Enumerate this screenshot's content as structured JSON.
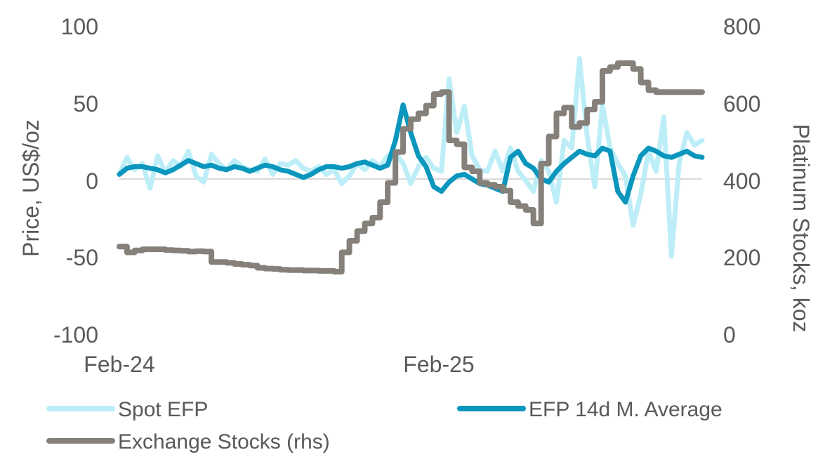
{
  "chart_data": {
    "type": "line",
    "ylabel": "Price, US$/oz",
    "y2label": "Platinum Stocks, koz",
    "ylim": [
      -100,
      100
    ],
    "y2lim": [
      0,
      800
    ],
    "y_ticks": [
      "100",
      "50",
      "0",
      "-50",
      "-100"
    ],
    "y2_ticks": [
      "800",
      "600",
      "400",
      "200",
      "0"
    ],
    "x_tick_labels": [
      "Feb-24",
      "Feb-25"
    ],
    "x_range_months": [
      "2024-02",
      "2025-12"
    ],
    "legend_position": "bottom",
    "series": [
      {
        "name": "Spot EFP",
        "axis": "left",
        "color": "#bdeef8",
        "x": [
          0.0,
          0.3,
          0.6,
          0.9,
          1.2,
          1.5,
          1.8,
          2.1,
          2.4,
          2.7,
          3.0,
          3.3,
          3.6,
          3.9,
          4.2,
          4.5,
          4.8,
          5.1,
          5.4,
          5.7,
          6.0,
          6.3,
          6.6,
          6.9,
          7.2,
          7.5,
          7.8,
          8.1,
          8.4,
          8.7,
          9.0,
          9.3,
          9.6,
          9.9,
          10.2,
          10.5,
          10.8,
          11.1,
          11.4,
          11.7,
          12.0,
          12.3,
          12.6,
          12.9,
          13.2,
          13.5,
          13.8,
          14.1,
          14.4,
          14.7,
          15.0,
          15.3,
          15.6,
          15.9,
          16.2,
          16.5,
          16.8,
          17.1,
          17.4,
          17.7,
          18.0,
          18.3,
          18.6,
          18.9,
          19.2,
          19.5,
          19.8,
          20.1,
          20.4,
          20.7,
          21.0,
          21.3,
          21.6,
          21.9,
          22.2,
          22.5,
          22.8
        ],
        "values": [
          3,
          14,
          6,
          10,
          -6,
          15,
          4,
          12,
          8,
          18,
          2,
          -2,
          16,
          10,
          6,
          12,
          8,
          6,
          5,
          13,
          3,
          10,
          9,
          12,
          7,
          5,
          8,
          3,
          6,
          -3,
          2,
          10,
          6,
          12,
          8,
          15,
          17,
          10,
          -3,
          8,
          14,
          7,
          5,
          65,
          30,
          47,
          15,
          6,
          5,
          18,
          5,
          20,
          5,
          -1,
          -8,
          12,
          5,
          -15,
          25,
          20,
          78,
          28,
          -5,
          48,
          20,
          10,
          2,
          -30,
          -10,
          18,
          5,
          40,
          -50,
          10,
          30,
          22,
          25
        ]
      },
      {
        "name": "EFP 14d M. Average",
        "axis": "left",
        "color": "#0a96bd",
        "x": [
          0.0,
          0.3,
          0.6,
          0.9,
          1.2,
          1.5,
          1.8,
          2.1,
          2.4,
          2.7,
          3.0,
          3.3,
          3.6,
          3.9,
          4.2,
          4.5,
          4.8,
          5.1,
          5.4,
          5.7,
          6.0,
          6.3,
          6.6,
          6.9,
          7.2,
          7.5,
          7.8,
          8.1,
          8.4,
          8.7,
          9.0,
          9.3,
          9.6,
          9.9,
          10.2,
          10.5,
          10.8,
          11.1,
          11.4,
          11.7,
          12.0,
          12.3,
          12.6,
          12.9,
          13.2,
          13.5,
          13.8,
          14.1,
          14.4,
          14.7,
          15.0,
          15.3,
          15.6,
          15.9,
          16.2,
          16.5,
          16.8,
          17.1,
          17.4,
          17.7,
          18.0,
          18.3,
          18.6,
          18.9,
          19.2,
          19.5,
          19.8,
          20.1,
          20.4,
          20.7,
          21.0,
          21.3,
          21.6,
          21.9,
          22.2,
          22.5,
          22.8
        ],
        "values": [
          3,
          7,
          8,
          8,
          7,
          6,
          4,
          6,
          9,
          12,
          10,
          8,
          9,
          7,
          6,
          8,
          7,
          5,
          7,
          9,
          8,
          6,
          5,
          3,
          1,
          3,
          6,
          8,
          8,
          7,
          8,
          10,
          11,
          9,
          7,
          9,
          25,
          48,
          30,
          15,
          8,
          -5,
          -8,
          -2,
          2,
          3,
          0,
          -3,
          -4,
          -6,
          -8,
          14,
          18,
          10,
          7,
          0,
          -2,
          5,
          10,
          14,
          18,
          16,
          15,
          20,
          18,
          -8,
          -15,
          2,
          15,
          20,
          18,
          15,
          14,
          16,
          18,
          15,
          14
        ],
        "x_note": "months since Feb-24"
      },
      {
        "name": "Exchange Stocks (rhs)",
        "axis": "right",
        "color": "#86807a",
        "x": [
          0.0,
          0.3,
          0.6,
          0.9,
          1.2,
          1.5,
          1.8,
          2.1,
          2.4,
          2.7,
          3.0,
          3.3,
          3.6,
          3.9,
          4.2,
          4.5,
          4.8,
          5.1,
          5.4,
          5.7,
          6.0,
          6.3,
          6.6,
          6.9,
          7.2,
          7.5,
          7.8,
          8.1,
          8.4,
          8.7,
          9.0,
          9.3,
          9.6,
          9.9,
          10.2,
          10.5,
          10.8,
          11.1,
          11.4,
          11.7,
          12.0,
          12.3,
          12.6,
          12.9,
          13.2,
          13.5,
          13.8,
          14.1,
          14.4,
          14.7,
          15.0,
          15.3,
          15.6,
          15.9,
          16.2,
          16.5,
          16.8,
          17.1,
          17.4,
          17.7,
          18.0,
          18.3,
          18.6,
          18.9,
          19.2,
          19.5,
          19.8,
          20.1,
          20.4,
          20.7,
          21.0,
          21.3,
          21.6,
          21.9,
          22.2,
          22.5,
          22.8
        ],
        "values": [
          225,
          210,
          215,
          218,
          218,
          218,
          216,
          215,
          214,
          212,
          213,
          212,
          185,
          185,
          183,
          180,
          178,
          176,
          170,
          168,
          167,
          165,
          164,
          164,
          163,
          163,
          162,
          162,
          160,
          210,
          240,
          265,
          285,
          300,
          340,
          390,
          470,
          530,
          555,
          570,
          590,
          620,
          625,
          500,
          490,
          430,
          420,
          390,
          385,
          380,
          370,
          340,
          330,
          320,
          285,
          440,
          510,
          570,
          585,
          535,
          545,
          580,
          600,
          680,
          690,
          700,
          700,
          685,
          650,
          630,
          625,
          625,
          625,
          625,
          625,
          625,
          625
        ]
      }
    ]
  }
}
